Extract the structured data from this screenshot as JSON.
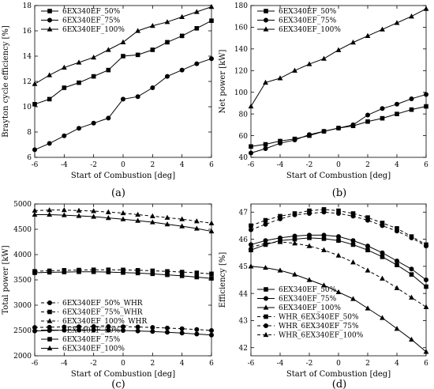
{
  "chart_data": [
    {
      "panel_label": "(a)",
      "type": "line",
      "xlabel": "Start of Combustion [deg]",
      "ylabel": "Brayton cycle efficiency [%]",
      "xlim": [
        -6,
        6
      ],
      "ylim": [
        6,
        18
      ],
      "xticks": [
        -6,
        -4,
        -2,
        0,
        2,
        4,
        6
      ],
      "yticks": [
        6,
        8,
        10,
        12,
        14,
        16,
        18
      ],
      "legend_position": "top-left",
      "x": [
        -6,
        -5,
        -4,
        -3,
        -2,
        -1,
        0,
        1,
        2,
        3,
        4,
        5,
        6
      ],
      "series": [
        {
          "name": "6EX340EF_50%",
          "marker": "square",
          "dash": false,
          "values": [
            10.2,
            10.6,
            11.5,
            11.9,
            12.4,
            12.9,
            14.0,
            14.1,
            14.5,
            15.1,
            15.6,
            16.2,
            16.8
          ]
        },
        {
          "name": "6EX340EF_75%",
          "marker": "circle",
          "dash": false,
          "values": [
            6.6,
            7.1,
            7.7,
            8.3,
            8.7,
            9.1,
            10.6,
            10.8,
            11.5,
            12.4,
            12.9,
            13.4,
            13.8
          ]
        },
        {
          "name": "6EX340EF_100%",
          "marker": "triangle",
          "dash": false,
          "values": [
            11.8,
            12.5,
            13.1,
            13.5,
            13.9,
            14.5,
            15.1,
            16.0,
            16.4,
            16.7,
            17.1,
            17.5,
            17.9
          ]
        }
      ]
    },
    {
      "panel_label": "(b)",
      "type": "line",
      "xlabel": "Start of Combustion [deg]",
      "ylabel": "Net power [kW]",
      "xlim": [
        -6,
        6
      ],
      "ylim": [
        40,
        180
      ],
      "xticks": [
        -6,
        -4,
        -2,
        0,
        2,
        4,
        6
      ],
      "yticks": [
        40,
        60,
        80,
        100,
        120,
        140,
        160,
        180
      ],
      "legend_position": "top-left",
      "x": [
        -6,
        -5,
        -4,
        -3,
        -2,
        -1,
        0,
        1,
        2,
        3,
        4,
        5,
        6
      ],
      "series": [
        {
          "name": "6EX340EF_50%",
          "marker": "square",
          "dash": false,
          "values": [
            50,
            52,
            55,
            57,
            60,
            64,
            67,
            69,
            73,
            76,
            80,
            84,
            87
          ]
        },
        {
          "name": "6EX340EF_75%",
          "marker": "circle",
          "dash": false,
          "values": [
            44,
            48,
            53,
            56,
            61,
            64,
            67,
            70,
            79,
            85,
            89,
            94,
            98
          ]
        },
        {
          "name": "6EX340EF_100%",
          "marker": "triangle",
          "dash": false,
          "values": [
            87,
            109,
            113,
            120,
            126,
            131,
            139,
            146,
            152,
            158,
            164,
            170,
            177
          ]
        }
      ]
    },
    {
      "panel_label": "(c)",
      "type": "line",
      "xlabel": "Start of Combustion [deg]",
      "ylabel": "Total power [kW]",
      "xlim": [
        -6,
        6
      ],
      "ylim": [
        2000,
        5000
      ],
      "xticks": [
        -6,
        -4,
        -2,
        0,
        2,
        4,
        6
      ],
      "yticks": [
        2000,
        2500,
        3000,
        3500,
        4000,
        4500,
        5000
      ],
      "legend_position": "bottom-left",
      "x": [
        -6,
        -5,
        -4,
        -3,
        -2,
        -1,
        0,
        1,
        2,
        3,
        4,
        5,
        6
      ],
      "series": [
        {
          "name": "6EX340EF_50%_WHR",
          "marker": "circle",
          "dash": true,
          "values": [
            2560,
            2565,
            2570,
            2575,
            2578,
            2578,
            2575,
            2570,
            2560,
            2548,
            2535,
            2520,
            2500
          ]
        },
        {
          "name": "6EX340EF_75%_WHR",
          "marker": "square",
          "dash": true,
          "values": [
            3670,
            3680,
            3690,
            3695,
            3700,
            3700,
            3698,
            3690,
            3680,
            3668,
            3655,
            3640,
            3620
          ]
        },
        {
          "name": "6EX340EF_100%_WHR",
          "marker": "triangle",
          "dash": true,
          "values": [
            4870,
            4880,
            4880,
            4870,
            4860,
            4840,
            4820,
            4790,
            4760,
            4730,
            4700,
            4660,
            4620
          ]
        },
        {
          "name": "6EX340EF_50%",
          "marker": "circle",
          "dash": false,
          "values": [
            2490,
            2500,
            2505,
            2510,
            2510,
            2505,
            2500,
            2490,
            2480,
            2465,
            2450,
            2430,
            2410
          ]
        },
        {
          "name": "6EX340EF_75%",
          "marker": "square",
          "dash": false,
          "values": [
            3640,
            3650,
            3655,
            3660,
            3660,
            3655,
            3645,
            3635,
            3620,
            3600,
            3580,
            3555,
            3530
          ]
        },
        {
          "name": "6EX340EF_100%",
          "marker": "triangle",
          "dash": false,
          "values": [
            4790,
            4790,
            4780,
            4765,
            4750,
            4725,
            4700,
            4670,
            4640,
            4600,
            4560,
            4515,
            4460
          ]
        }
      ]
    },
    {
      "panel_label": "(d)",
      "type": "line",
      "xlabel": "Start of Combustion [deg]",
      "ylabel": "Efficiency [%]",
      "xlim": [
        -6,
        6
      ],
      "ylim": [
        41.7,
        47.3
      ],
      "xticks": [
        -6,
        -4,
        -2,
        0,
        2,
        4,
        6
      ],
      "yticks": [
        42,
        43,
        44,
        45,
        46,
        47
      ],
      "legend_position": "bottom-left",
      "x": [
        -6,
        -5,
        -4,
        -3,
        -2,
        -1,
        0,
        1,
        2,
        3,
        4,
        5,
        6
      ],
      "series": [
        {
          "name": "6EX340EF_50%",
          "marker": "square",
          "dash": false,
          "values": [
            45.6,
            45.8,
            45.95,
            46.0,
            46.05,
            46.02,
            45.95,
            45.8,
            45.6,
            45.35,
            45.05,
            44.7,
            44.25
          ]
        },
        {
          "name": "6EX340EF_75%",
          "marker": "circle",
          "dash": false,
          "values": [
            45.8,
            45.95,
            46.05,
            46.12,
            46.15,
            46.15,
            46.1,
            45.95,
            45.75,
            45.5,
            45.2,
            44.9,
            44.5
          ]
        },
        {
          "name": "6EX340EF_100%",
          "marker": "triangle",
          "dash": false,
          "values": [
            45.0,
            44.95,
            44.85,
            44.7,
            44.5,
            44.3,
            44.05,
            43.8,
            43.45,
            43.1,
            42.7,
            42.3,
            41.85
          ]
        },
        {
          "name": "WHR_6EX340EF_50%",
          "marker": "square",
          "dash": true,
          "values": [
            46.5,
            46.7,
            46.85,
            46.95,
            47.05,
            47.1,
            47.05,
            46.95,
            46.8,
            46.6,
            46.4,
            46.1,
            45.8
          ]
        },
        {
          "name": "WHR_6EX340EF_75%",
          "marker": "circle",
          "dash": true,
          "values": [
            46.35,
            46.55,
            46.75,
            46.9,
            46.95,
            47.0,
            46.95,
            46.85,
            46.7,
            46.5,
            46.3,
            46.05,
            45.75
          ]
        },
        {
          "name": "WHR_6EX340EF_100%",
          "marker": "triangle",
          "dash": true,
          "values": [
            45.7,
            45.85,
            45.9,
            45.85,
            45.75,
            45.6,
            45.4,
            45.15,
            44.85,
            44.55,
            44.2,
            43.85,
            43.5
          ]
        }
      ]
    }
  ]
}
